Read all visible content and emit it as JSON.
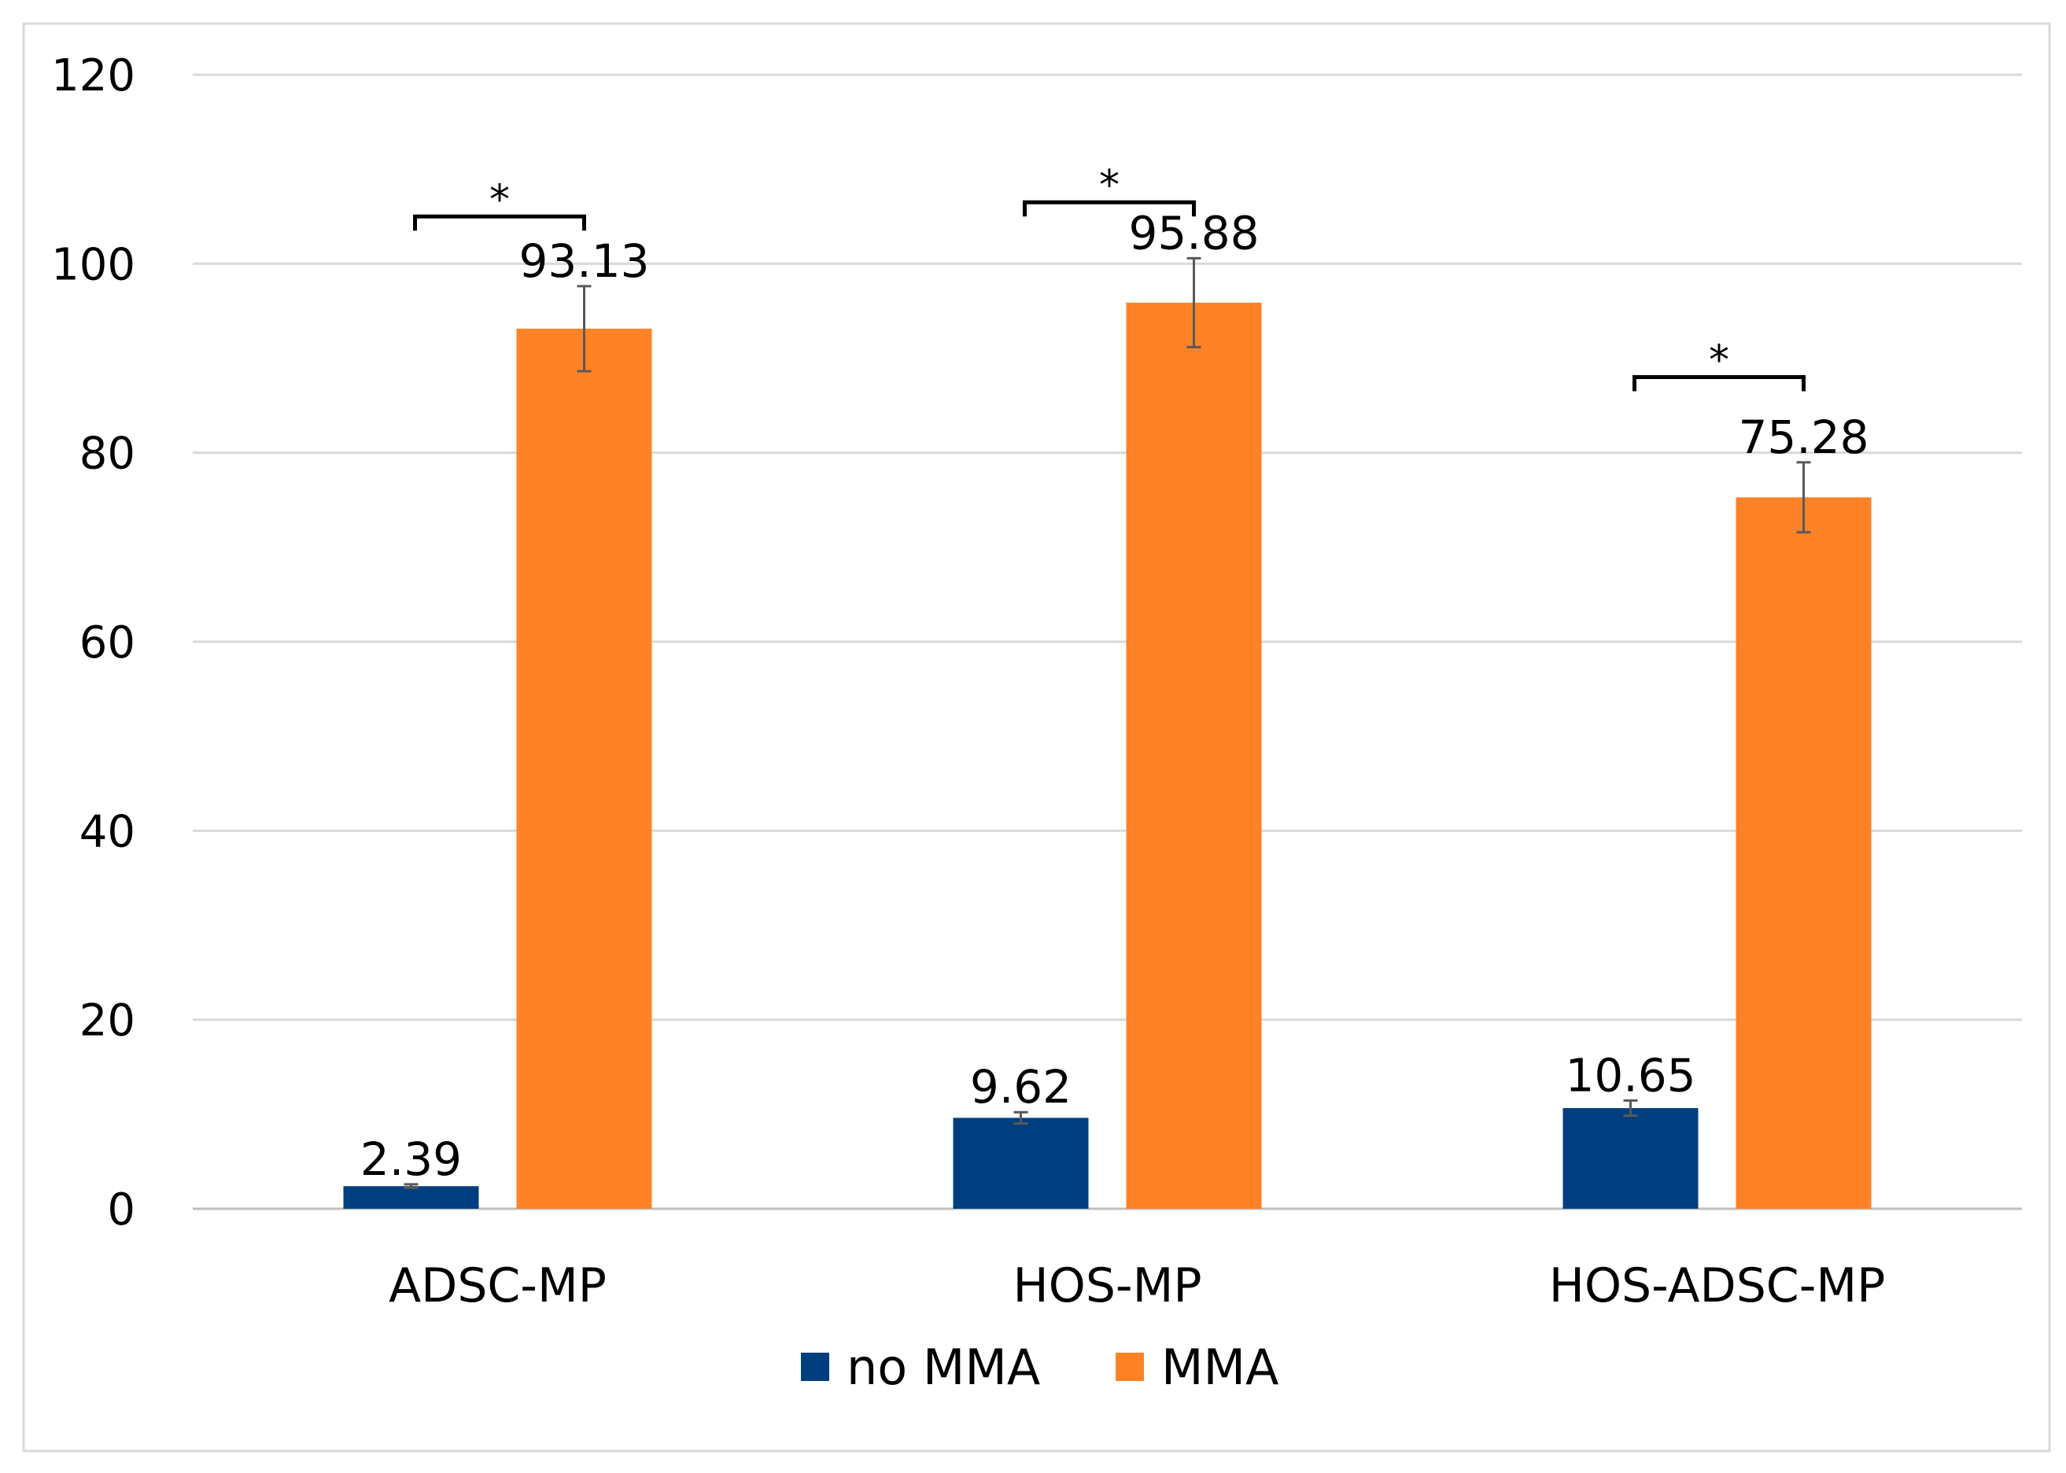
{
  "chart_data": {
    "type": "bar",
    "title": "",
    "xlabel": "",
    "ylabel": "",
    "ylim": [
      0,
      120
    ],
    "yticks": [
      0,
      20,
      40,
      60,
      80,
      100,
      120
    ],
    "grid": true,
    "legend_position": "bottom",
    "categories": [
      "ADSC-MP",
      "HOS-MP",
      "HOS-ADSC-MP"
    ],
    "series": [
      {
        "name": "no MMA",
        "color": "#003f7f",
        "values": [
          2.39,
          9.62,
          10.65
        ],
        "labels": [
          "2.39",
          "9.62",
          "10.65"
        ],
        "errors": [
          0.2,
          0.6,
          0.8
        ]
      },
      {
        "name": "MMA",
        "color": "#ff8226",
        "values": [
          93.13,
          95.88,
          75.28
        ],
        "labels": [
          "93.13",
          "95.88",
          "75.28"
        ],
        "errors": [
          4.5,
          4.7,
          3.7
        ]
      }
    ],
    "significance": [
      {
        "category": "ADSC-MP",
        "label": "*",
        "level": 105
      },
      {
        "category": "HOS-MP",
        "label": "*",
        "level": 106.5
      },
      {
        "category": "HOS-ADSC-MP",
        "label": "*",
        "level": 88
      }
    ]
  }
}
